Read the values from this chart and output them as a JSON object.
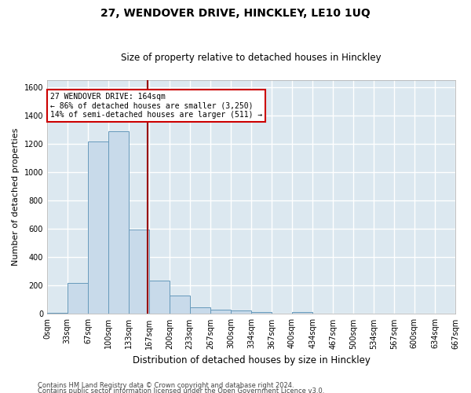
{
  "title": "27, WENDOVER DRIVE, HINCKLEY, LE10 1UQ",
  "subtitle": "Size of property relative to detached houses in Hinckley",
  "xlabel": "Distribution of detached houses by size in Hinckley",
  "ylabel": "Number of detached properties",
  "bar_color": "#c8daea",
  "bar_edge_color": "#6699bb",
  "background_color": "#dce8f0",
  "fig_background_color": "#ffffff",
  "grid_color": "#ffffff",
  "vline_x": 164,
  "vline_color": "#990000",
  "annotation_title": "27 WENDOVER DRIVE: 164sqm",
  "annotation_line1": "← 86% of detached houses are smaller (3,250)",
  "annotation_line2": "14% of semi-detached houses are larger (511) →",
  "annotation_box_facecolor": "#ffffff",
  "annotation_box_edgecolor": "#cc0000",
  "bin_edges": [
    0,
    33,
    67,
    100,
    133,
    167,
    200,
    233,
    267,
    300,
    334,
    367,
    400,
    434,
    467,
    500,
    534,
    567,
    600,
    634,
    667
  ],
  "bar_heights": [
    10,
    220,
    1215,
    1290,
    595,
    235,
    130,
    45,
    30,
    25,
    15,
    0,
    15,
    0,
    0,
    0,
    0,
    0,
    0,
    0
  ],
  "ylim": [
    0,
    1650
  ],
  "xlim": [
    0,
    667
  ],
  "yticks": [
    0,
    200,
    400,
    600,
    800,
    1000,
    1200,
    1400,
    1600
  ],
  "tick_labels": [
    "0sqm",
    "33sqm",
    "67sqm",
    "100sqm",
    "133sqm",
    "167sqm",
    "200sqm",
    "233sqm",
    "267sqm",
    "300sqm",
    "334sqm",
    "367sqm",
    "400sqm",
    "434sqm",
    "467sqm",
    "500sqm",
    "534sqm",
    "567sqm",
    "600sqm",
    "634sqm",
    "667sqm"
  ],
  "footnote1": "Contains HM Land Registry data © Crown copyright and database right 2024.",
  "footnote2": "Contains public sector information licensed under the Open Government Licence v3.0.",
  "title_fontsize": 10,
  "subtitle_fontsize": 8.5,
  "ylabel_fontsize": 8,
  "xlabel_fontsize": 8.5,
  "tick_fontsize": 7,
  "annotation_fontsize": 7,
  "footnote_fontsize": 6
}
